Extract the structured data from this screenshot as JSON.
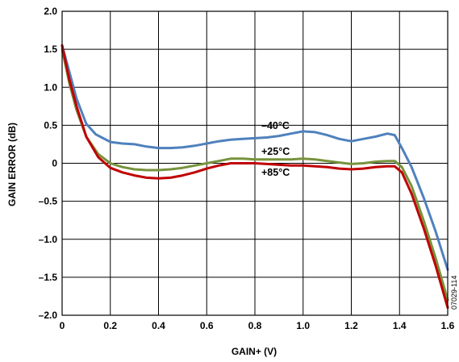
{
  "chart_data": {
    "type": "line",
    "title": "",
    "xlabel": "GAIN+ (V)",
    "ylabel": "GAIN ERROR (dB)",
    "xlim": [
      0,
      1.6
    ],
    "ylim": [
      -2.0,
      2.0
    ],
    "grid": true,
    "x_ticks": [
      0,
      0.2,
      0.4,
      0.6,
      0.8,
      1.0,
      1.2,
      1.4,
      1.6
    ],
    "x_tick_labels": [
      "0",
      "0.2",
      "0.4",
      "0.6",
      "0.8",
      "1.0",
      "1.2",
      "1.4",
      "1.6"
    ],
    "y_ticks": [
      -2.0,
      -1.5,
      -1.0,
      -0.5,
      0,
      0.5,
      1.0,
      1.5,
      2.0
    ],
    "y_tick_labels": [
      "–2.0",
      "–1.5",
      "–1.0",
      "–0.5",
      "0",
      "0.5",
      "1.0",
      "1.5",
      "2.0"
    ],
    "figure_id": "07029-114",
    "series": [
      {
        "name": "–40°C",
        "color": "#4f81bd",
        "x": [
          0,
          0.03,
          0.06,
          0.1,
          0.14,
          0.2,
          0.25,
          0.3,
          0.35,
          0.4,
          0.45,
          0.5,
          0.55,
          0.6,
          0.65,
          0.7,
          0.75,
          0.8,
          0.85,
          0.9,
          0.95,
          1.0,
          1.05,
          1.1,
          1.15,
          1.2,
          1.25,
          1.3,
          1.35,
          1.38,
          1.41,
          1.45,
          1.5,
          1.55,
          1.6
        ],
        "y": [
          1.55,
          1.2,
          0.85,
          0.52,
          0.38,
          0.28,
          0.26,
          0.25,
          0.22,
          0.2,
          0.2,
          0.21,
          0.23,
          0.26,
          0.29,
          0.31,
          0.32,
          0.33,
          0.34,
          0.36,
          0.39,
          0.42,
          0.41,
          0.37,
          0.32,
          0.29,
          0.32,
          0.35,
          0.39,
          0.37,
          0.2,
          -0.05,
          -0.45,
          -0.9,
          -1.4
        ]
      },
      {
        "name": "+25°C",
        "color": "#77933c",
        "x": [
          0,
          0.03,
          0.06,
          0.1,
          0.15,
          0.2,
          0.25,
          0.3,
          0.35,
          0.4,
          0.45,
          0.5,
          0.55,
          0.6,
          0.65,
          0.7,
          0.75,
          0.8,
          0.85,
          0.9,
          0.95,
          1.0,
          1.05,
          1.1,
          1.15,
          1.2,
          1.25,
          1.3,
          1.35,
          1.38,
          1.41,
          1.45,
          1.5,
          1.55,
          1.6
        ],
        "y": [
          1.5,
          1.05,
          0.7,
          0.35,
          0.12,
          0.0,
          -0.05,
          -0.08,
          -0.09,
          -0.09,
          -0.08,
          -0.06,
          -0.03,
          0.0,
          0.03,
          0.06,
          0.06,
          0.05,
          0.05,
          0.05,
          0.05,
          0.06,
          0.05,
          0.03,
          0.01,
          -0.01,
          0.0,
          0.02,
          0.03,
          0.03,
          -0.05,
          -0.3,
          -0.75,
          -1.25,
          -1.8
        ]
      },
      {
        "name": "+85°C",
        "color": "#c00000",
        "x": [
          0,
          0.03,
          0.06,
          0.1,
          0.15,
          0.2,
          0.25,
          0.3,
          0.35,
          0.4,
          0.45,
          0.5,
          0.55,
          0.6,
          0.65,
          0.7,
          0.75,
          0.8,
          0.85,
          0.9,
          0.95,
          1.0,
          1.05,
          1.1,
          1.15,
          1.2,
          1.25,
          1.3,
          1.35,
          1.38,
          1.41,
          1.45,
          1.5,
          1.55,
          1.6
        ],
        "y": [
          1.55,
          1.1,
          0.75,
          0.35,
          0.08,
          -0.06,
          -0.12,
          -0.16,
          -0.19,
          -0.2,
          -0.19,
          -0.16,
          -0.12,
          -0.07,
          -0.03,
          0.0,
          0.0,
          0.0,
          -0.01,
          -0.02,
          -0.03,
          -0.03,
          -0.04,
          -0.05,
          -0.07,
          -0.08,
          -0.07,
          -0.05,
          -0.04,
          -0.04,
          -0.12,
          -0.4,
          -0.85,
          -1.35,
          -1.9
        ]
      }
    ]
  }
}
